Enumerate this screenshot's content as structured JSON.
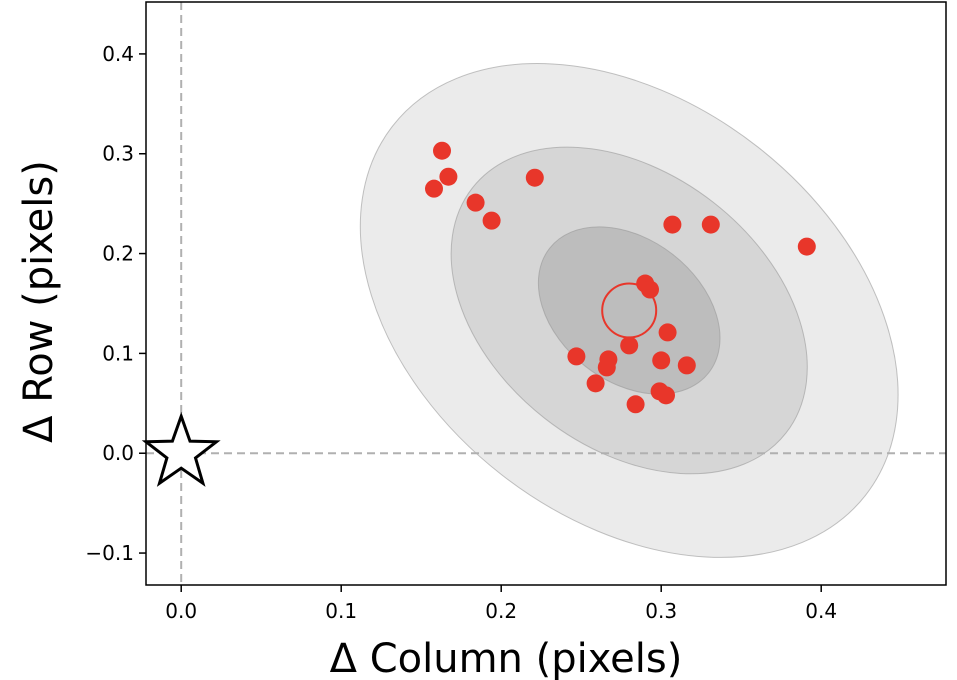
{
  "chart_data": {
    "type": "scatter",
    "xlabel": "Δ Column (pixels)",
    "ylabel": "Δ Row (pixels)",
    "xlim": [
      -0.022,
      0.478
    ],
    "ylim": [
      -0.132,
      0.452
    ],
    "x_ticks": [
      {
        "value": 0.0,
        "label": "0.0"
      },
      {
        "value": 0.1,
        "label": "0.1"
      },
      {
        "value": 0.2,
        "label": "0.2"
      },
      {
        "value": 0.3,
        "label": "0.3"
      },
      {
        "value": 0.4,
        "label": "0.4"
      }
    ],
    "y_ticks": [
      {
        "value": -0.1,
        "label": "−0.1"
      },
      {
        "value": 0.0,
        "label": "0.0"
      },
      {
        "value": 0.1,
        "label": "0.1"
      },
      {
        "value": 0.2,
        "label": "0.2"
      },
      {
        "value": 0.3,
        "label": "0.3"
      },
      {
        "value": 0.4,
        "label": "0.4"
      }
    ],
    "grid": false,
    "reference_lines": {
      "x": 0.0,
      "y": 0.0,
      "style": "dashed",
      "color": "#b0b0b0"
    },
    "reference_star": {
      "x": 0.0,
      "y": 0.0
    },
    "centroid_circle": {
      "x": 0.28,
      "y": 0.143
    },
    "confidence_ellipses": [
      {
        "sigma": 3,
        "cx": 0.28,
        "cy": 0.143,
        "fill": "#ebebeb"
      },
      {
        "sigma": 2,
        "cx": 0.28,
        "cy": 0.143,
        "fill": "#d6d6d6"
      },
      {
        "sigma": 1,
        "cx": 0.28,
        "cy": 0.143,
        "fill": "#bdbdbd"
      }
    ],
    "series": [
      {
        "color": "#e8362a",
        "points": [
          {
            "x": 0.163,
            "y": 0.303
          },
          {
            "x": 0.158,
            "y": 0.265
          },
          {
            "x": 0.167,
            "y": 0.277
          },
          {
            "x": 0.184,
            "y": 0.251
          },
          {
            "x": 0.194,
            "y": 0.233
          },
          {
            "x": 0.221,
            "y": 0.276
          },
          {
            "x": 0.307,
            "y": 0.229
          },
          {
            "x": 0.331,
            "y": 0.229
          },
          {
            "x": 0.391,
            "y": 0.207
          },
          {
            "x": 0.29,
            "y": 0.17
          },
          {
            "x": 0.293,
            "y": 0.164
          },
          {
            "x": 0.304,
            "y": 0.121
          },
          {
            "x": 0.28,
            "y": 0.108
          },
          {
            "x": 0.247,
            "y": 0.097
          },
          {
            "x": 0.267,
            "y": 0.094
          },
          {
            "x": 0.266,
            "y": 0.086
          },
          {
            "x": 0.3,
            "y": 0.093
          },
          {
            "x": 0.316,
            "y": 0.088
          },
          {
            "x": 0.259,
            "y": 0.07
          },
          {
            "x": 0.299,
            "y": 0.062
          },
          {
            "x": 0.303,
            "y": 0.058
          },
          {
            "x": 0.284,
            "y": 0.049
          }
        ]
      }
    ]
  }
}
